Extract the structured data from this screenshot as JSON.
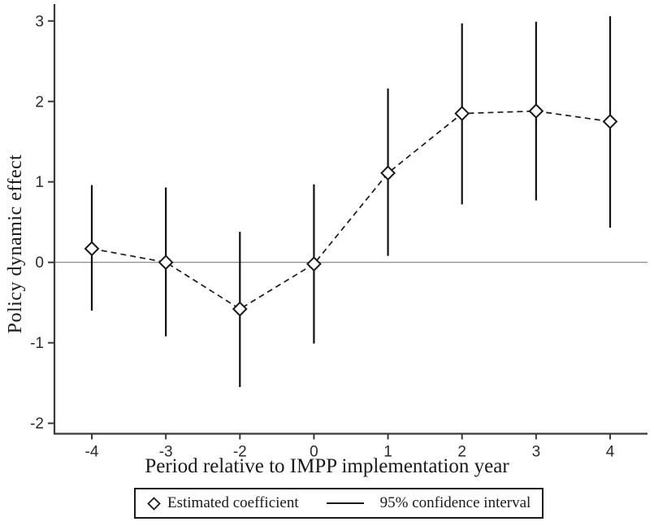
{
  "chart_data": {
    "type": "scatter",
    "title": "",
    "xlabel": "Period relative to IMPP implementation year",
    "ylabel": "Policy dynamic effect",
    "categories": [
      "-4",
      "-3",
      "-2",
      "0",
      "1",
      "2",
      "3",
      "4"
    ],
    "series": [
      {
        "name": "Estimated coefficient",
        "estimates": [
          0.17,
          0.0,
          -0.58,
          -0.02,
          1.11,
          1.85,
          1.88,
          1.75
        ],
        "ci_low": [
          -0.6,
          -0.92,
          -1.55,
          -1.01,
          0.08,
          0.72,
          0.77,
          0.43
        ],
        "ci_high": [
          0.96,
          0.93,
          0.38,
          0.97,
          2.16,
          2.97,
          2.99,
          3.06
        ]
      }
    ],
    "yticks": [
      -2,
      -1,
      0,
      1,
      2,
      3
    ],
    "ylim": [
      -2.13,
      3.21
    ],
    "zero_reference_line": true,
    "grid": false,
    "marker": "hollow-diamond",
    "line_style": "dashed",
    "legend": {
      "position": "bottom",
      "items": [
        {
          "icon": "diamond-marker-icon",
          "label": "Estimated coefficient"
        },
        {
          "icon": "ci-line-icon",
          "label": "95% confidence interval"
        }
      ]
    },
    "colors": {
      "series": "#1a1a1a",
      "ci": "#111111",
      "axis": "#3a3a3a",
      "tick_label": "#2a2a2a",
      "zero_line": "#7d7d7d",
      "marker_fill": "#ffffff",
      "background": "#ffffff"
    }
  }
}
